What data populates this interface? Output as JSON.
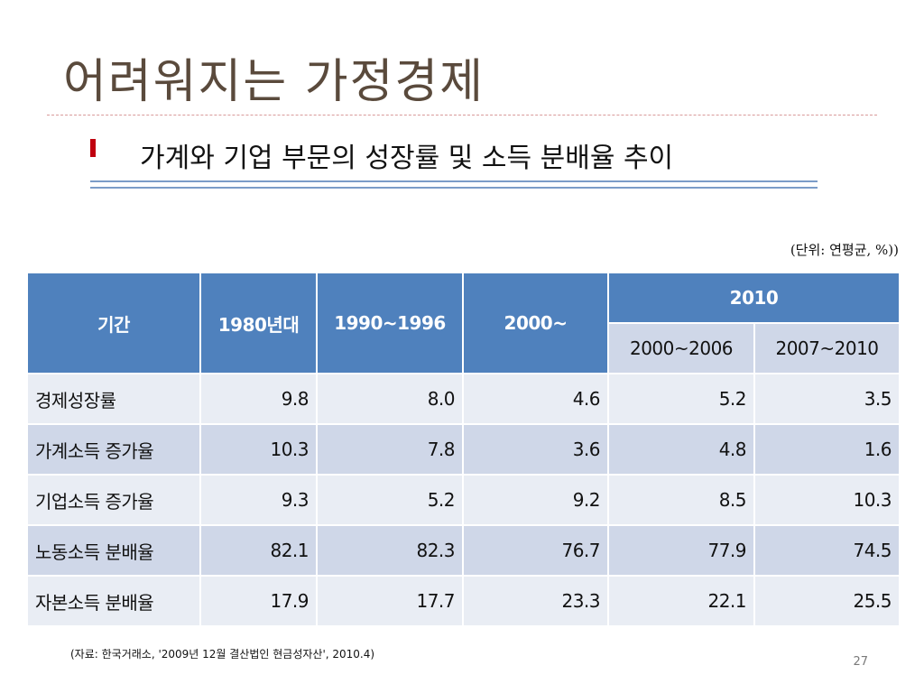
{
  "slide": {
    "title": "어려워지는 가정경제",
    "subtitle": "가계와 기업 부문의 성장률 및 소득 분배율 추이",
    "unit_note": "(단위: 연평균, %))",
    "source": "(자료: 한국거래소, '2009년 12월 결산법인 현금성자산', 2010.4)",
    "page_number": "27"
  },
  "table": {
    "headers": {
      "period": "기간",
      "c1980": "1980년대",
      "c1990": "1990~1996",
      "c2000": "2000~",
      "c2010": "2010",
      "sub_2000_2006": "2000~2006",
      "sub_2007_2010": "2007~2010"
    },
    "rows": [
      {
        "label": "경제성장률",
        "values": [
          "9.8",
          "8.0",
          "4.6",
          "5.2",
          "3.5"
        ]
      },
      {
        "label": "가계소득 증가율",
        "values": [
          "10.3",
          "7.8",
          "3.6",
          "4.8",
          "1.6"
        ]
      },
      {
        "label": "기업소득 증가율",
        "values": [
          "9.3",
          "5.2",
          "9.2",
          "8.5",
          "10.3"
        ]
      },
      {
        "label": "노동소득 분배율",
        "values": [
          "82.1",
          "82.3",
          "76.7",
          "77.9",
          "74.5"
        ]
      },
      {
        "label": "자본소득 분배율",
        "values": [
          "17.9",
          "17.7",
          "23.3",
          "22.1",
          "25.5"
        ]
      }
    ]
  }
}
